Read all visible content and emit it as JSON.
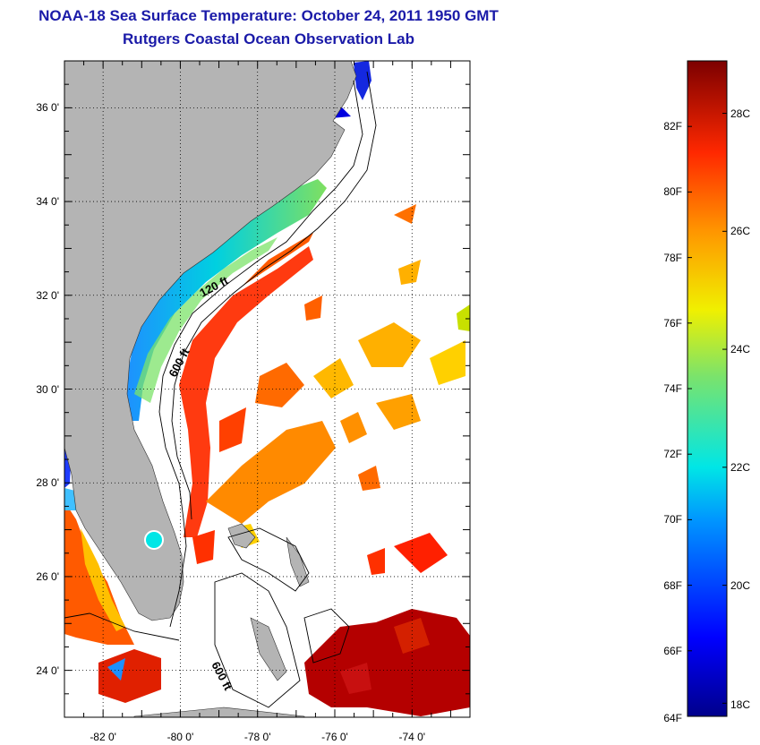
{
  "title_line1": "NOAA-18 Sea Surface Temperature:  October 24, 2011 1950 GMT",
  "title_line2": "Rutgers Coastal Ocean Observation Lab",
  "map": {
    "lon_range": [
      -83,
      -72.5
    ],
    "lat_range": [
      23,
      37
    ],
    "lon_ticks": [
      "-82 0'",
      "-80 0'",
      "-78 0'",
      "-76 0'",
      "-74 0'"
    ],
    "lat_ticks": [
      "36 0'",
      "34 0'",
      "32 0'",
      "30 0'",
      "28 0'",
      "26 0'",
      "24 0'"
    ],
    "contour_labels": [
      "120 ft",
      "600 ft",
      "600 ft"
    ],
    "land_color": "#b4b4b4"
  },
  "colorbar": {
    "range_f": [
      64,
      84
    ],
    "f_labels": [
      "82F",
      "80F",
      "78F",
      "76F",
      "74F",
      "72F",
      "70F",
      "68F",
      "66F",
      "64F"
    ],
    "c_labels": [
      "28C",
      "26C",
      "24C",
      "22C",
      "20C",
      "18C"
    ]
  }
}
